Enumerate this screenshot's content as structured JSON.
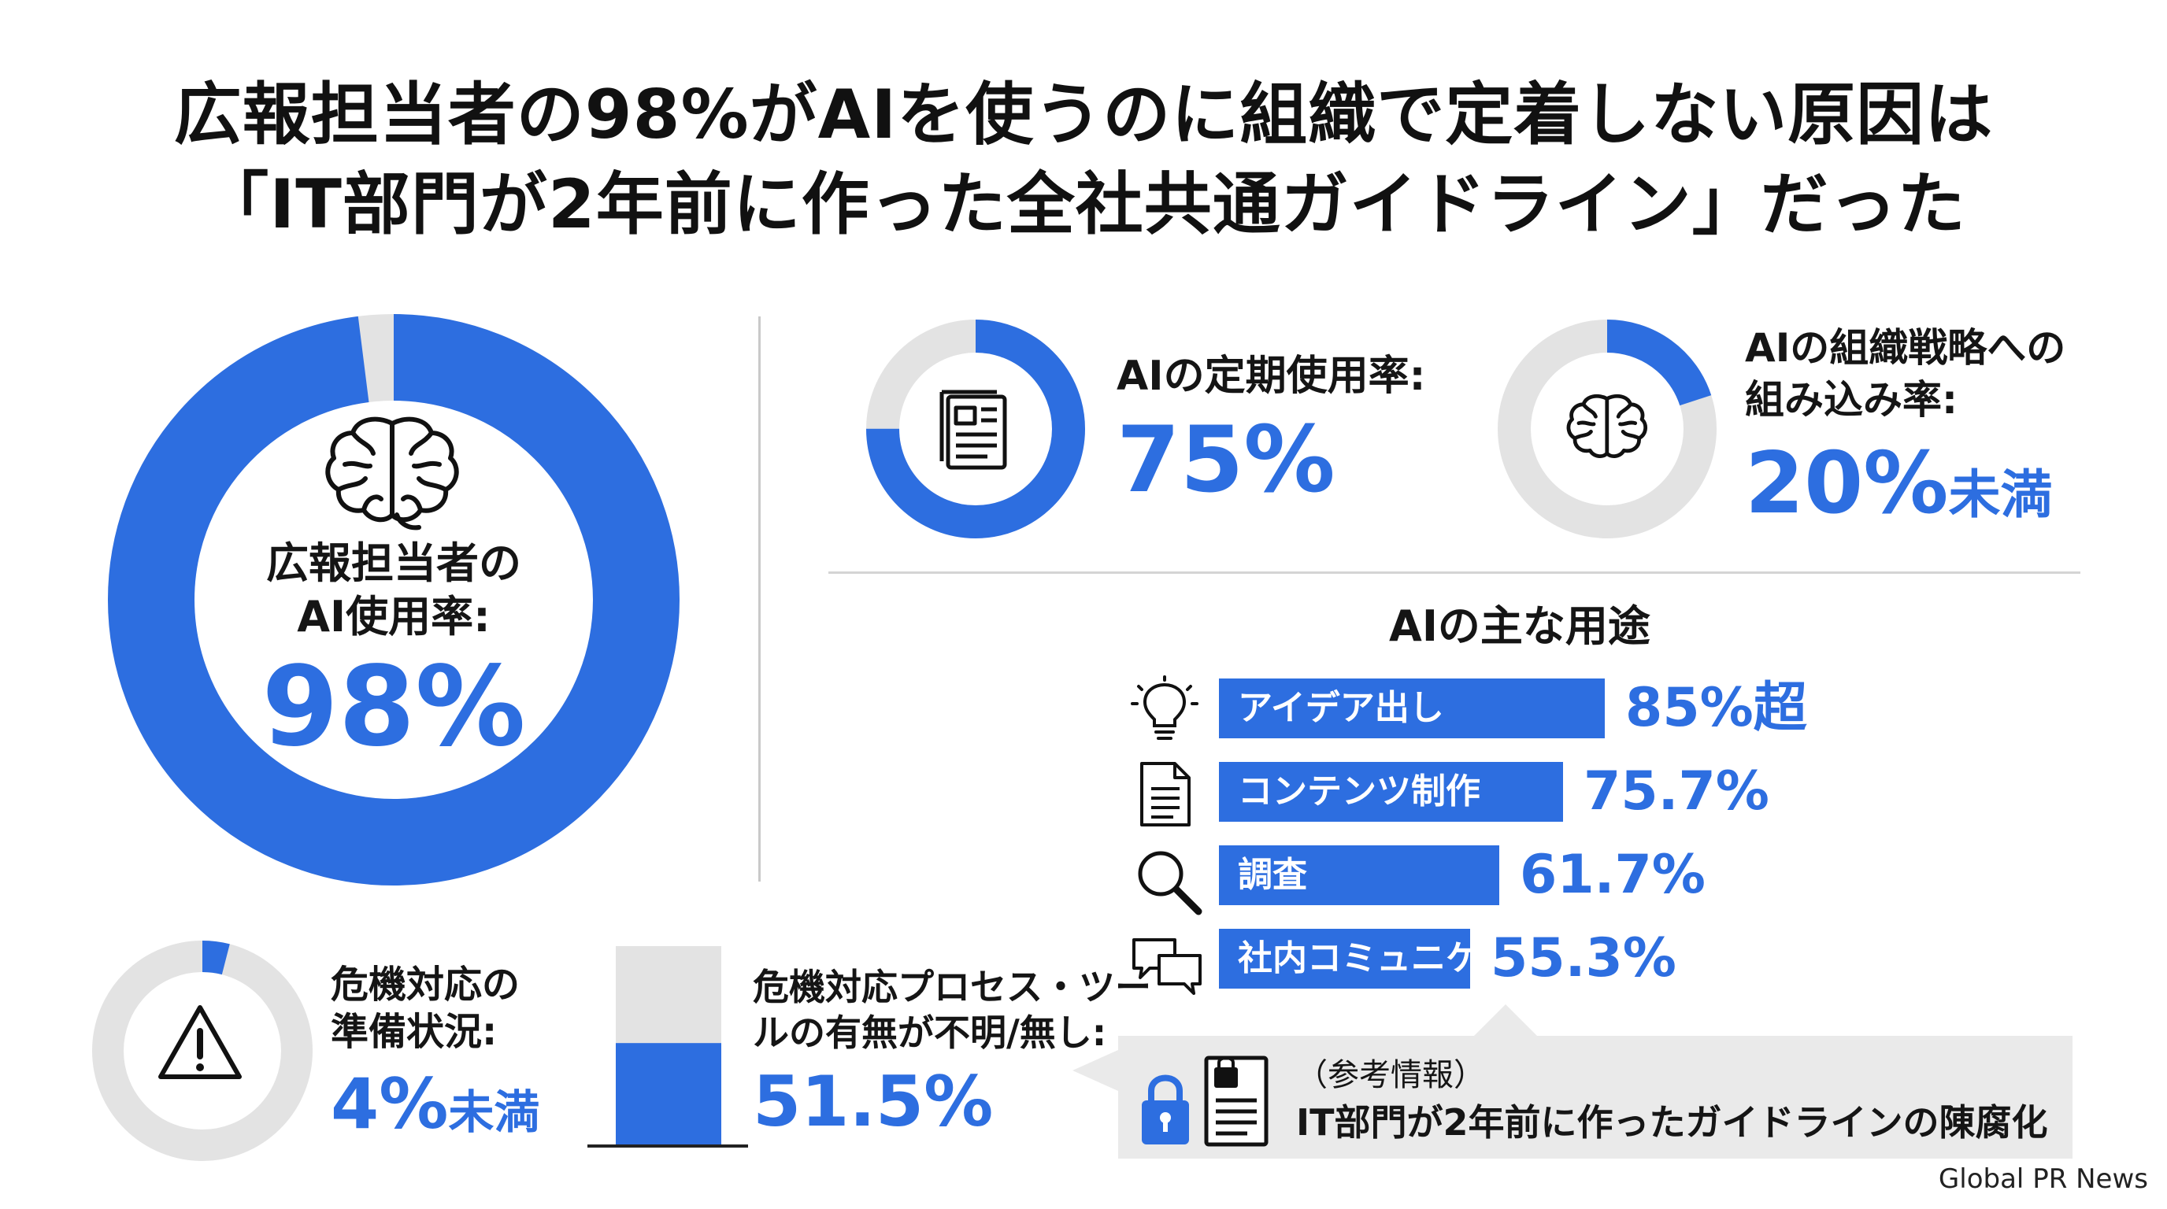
{
  "title": {
    "line1": "広報担当者の98%がAIを使うのに組織で定着しない原因は",
    "line2": "「IT部門が2年前に作った全社共通ガイドライン」だった"
  },
  "colors": {
    "accent": "#2d6ee0",
    "track": "#e3e3e3",
    "text": "#111111"
  },
  "main_stat": {
    "label1": "広報担当者の",
    "label2": "AI使用率:",
    "value": "98%",
    "percent": 98,
    "icon": "brain-icon"
  },
  "regular_use": {
    "label": "AIの定期使用率:",
    "value": "75%",
    "percent": 75,
    "icon": "document-icon"
  },
  "strategy": {
    "label1": "AIの組織戦略への",
    "label2": "組み込み率:",
    "value_num": "20%",
    "value_suffix": "未満",
    "percent": 20,
    "icon": "brain-icon"
  },
  "crisis": {
    "label1": "危機対応の",
    "label2": "準備状況:",
    "value_num": "4%",
    "value_suffix": "未満",
    "percent": 4,
    "icon": "warning-icon"
  },
  "process": {
    "label1": "危機対応プロセス・ツー",
    "label2": "ルの有無が不明/無し:",
    "value": "51.5%",
    "percent": 51.5
  },
  "uses": {
    "title": "AIの主な用途",
    "items": [
      {
        "label": "アイデア出し",
        "value": "85%超",
        "percent": 85,
        "icon": "lightbulb-icon"
      },
      {
        "label": "コンテンツ制作",
        "value": "75.7%",
        "percent": 75.7,
        "icon": "document-icon"
      },
      {
        "label": "調査",
        "value": "61.7%",
        "percent": 61.7,
        "icon": "search-icon"
      },
      {
        "label": "社内コミュニケーション",
        "value": "55.3%",
        "percent": 55.3,
        "icon": "chat-icon"
      }
    ]
  },
  "reference": {
    "line1": "（参考情報）",
    "line2": "IT部門が2年前に作ったガイドラインの陳腐化",
    "icon": "lock-document-icon"
  },
  "credit": "Global PR News",
  "chart_data": [
    {
      "type": "pie",
      "title": "",
      "categories": [
        "広報担当者のAI使用率"
      ],
      "values": [
        98
      ]
    },
    {
      "type": "pie",
      "title": "",
      "categories": [
        "AIの定期使用率"
      ],
      "values": [
        75
      ]
    },
    {
      "type": "pie",
      "title": "",
      "categories": [
        "AIの組織戦略への組み込み率"
      ],
      "values": [
        20
      ]
    },
    {
      "type": "pie",
      "title": "",
      "categories": [
        "危機対応の準備状況"
      ],
      "values": [
        4
      ]
    },
    {
      "type": "bar",
      "title": "",
      "categories": [
        "危機対応プロセス・ツールの有無が不明/無し"
      ],
      "values": [
        51.5
      ],
      "ylim": [
        0,
        100
      ]
    },
    {
      "type": "bar",
      "title": "AIの主な用途",
      "categories": [
        "アイデア出し",
        "コンテンツ制作",
        "調査",
        "社内コミュニケーション"
      ],
      "values": [
        85,
        75.7,
        61.7,
        55.3
      ]
    }
  ]
}
